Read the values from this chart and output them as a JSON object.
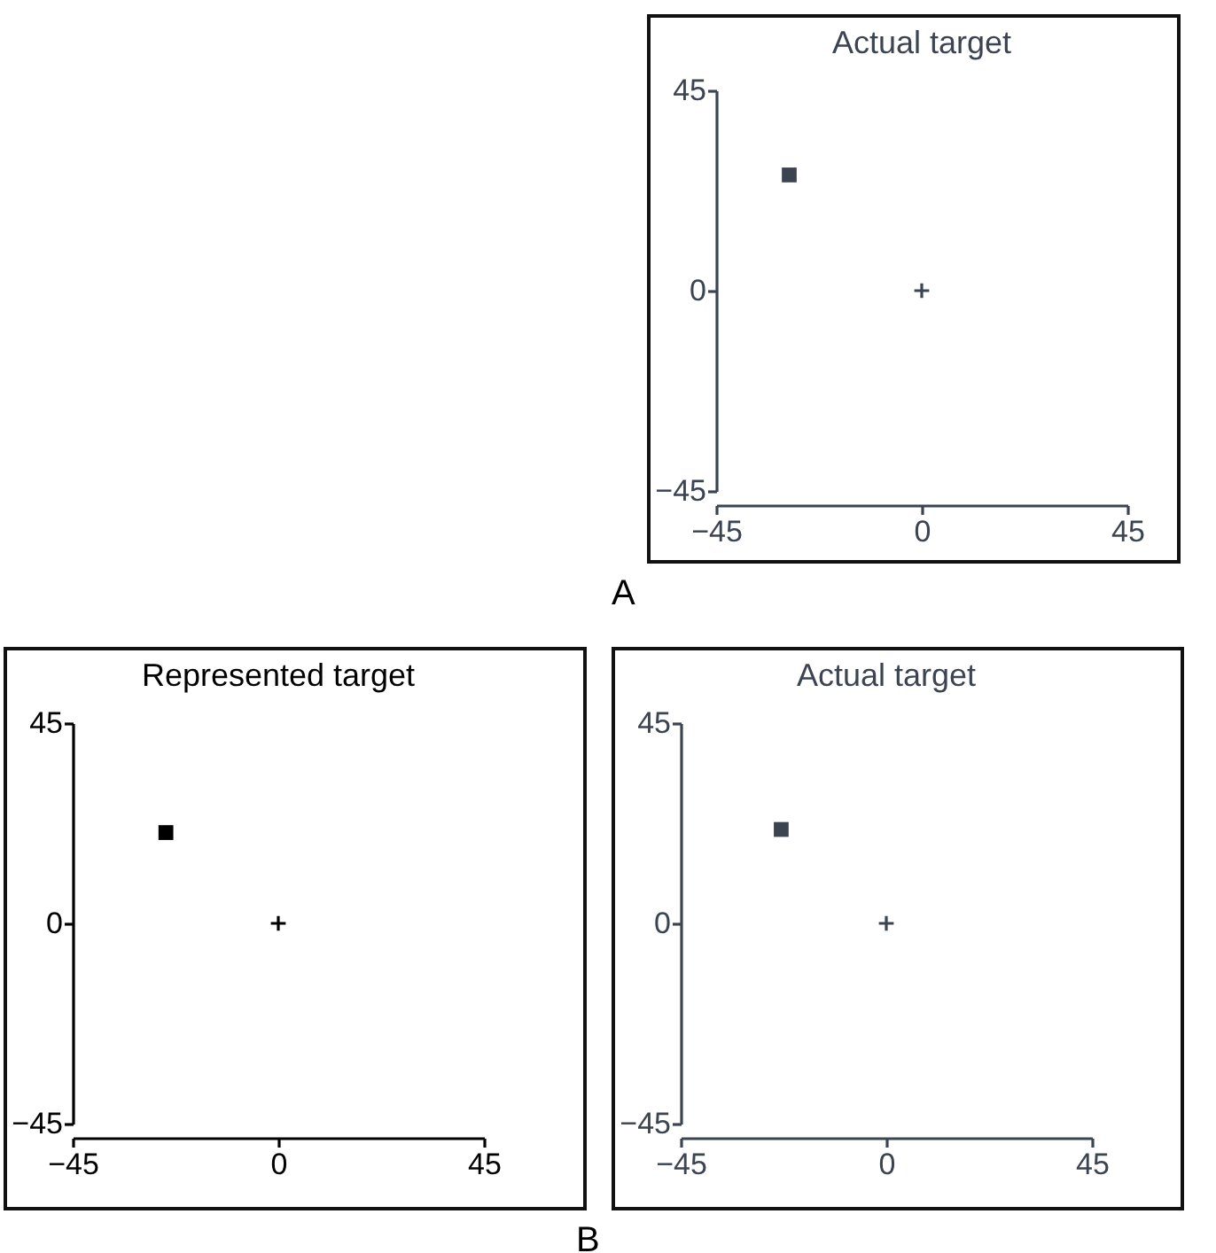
{
  "chart_data": [
    {
      "type": "scatter",
      "title": "Actual target",
      "xlim": [
        -45,
        45
      ],
      "ylim": [
        -45,
        45
      ],
      "xticks": [
        -45,
        0,
        45
      ],
      "yticks": [
        -45,
        0,
        45
      ],
      "grid": false,
      "annotations": [
        "A"
      ],
      "series": [
        {
          "marker": "square",
          "color": "#3c4452",
          "x": [
            -29
          ],
          "values": [
            26
          ]
        },
        {
          "marker": "cross",
          "color": "#3c4452",
          "x": [
            0
          ],
          "values": [
            0
          ]
        }
      ]
    },
    {
      "type": "scatter",
      "title": "Represented target",
      "xlim": [
        -45,
        45
      ],
      "ylim": [
        -45,
        45
      ],
      "xticks": [
        -45,
        0,
        45
      ],
      "yticks": [
        -45,
        0,
        45
      ],
      "grid": false,
      "series": [
        {
          "marker": "square",
          "color": "#000000",
          "x": [
            -24.6
          ],
          "values": [
            20.4
          ]
        },
        {
          "marker": "cross",
          "color": "#000000",
          "x": [
            0
          ],
          "values": [
            0
          ]
        }
      ]
    },
    {
      "type": "scatter",
      "title": "Actual target",
      "xlim": [
        -45,
        45
      ],
      "ylim": [
        -45,
        45
      ],
      "xticks": [
        -45,
        0,
        45
      ],
      "yticks": [
        -45,
        0,
        45
      ],
      "grid": false,
      "annotations": [
        "B"
      ],
      "series": [
        {
          "marker": "square",
          "color": "#3c4452",
          "x": [
            -23
          ],
          "values": [
            21.1
          ]
        },
        {
          "marker": "cross",
          "color": "#3c4452",
          "x": [
            0
          ],
          "values": [
            0
          ]
        }
      ]
    }
  ]
}
